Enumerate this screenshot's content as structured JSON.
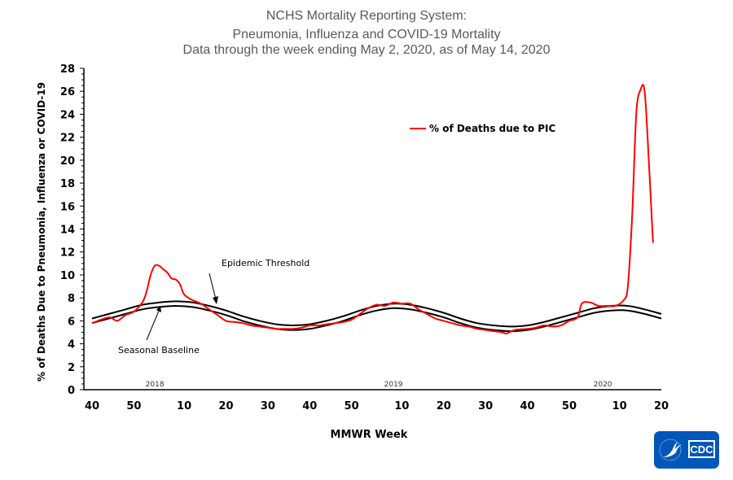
{
  "chart_data": {
    "type": "line",
    "title": [
      "NCHS Mortality Reporting System:",
      "Pneumonia, Influenza and COVID-19 Mortality",
      "Data through the week ending May 2, 2020, as of May 14, 2020"
    ],
    "xlabel": "MMWR Week",
    "ylabel": "% of Deaths Due to Pneumonia, Influenza or  COVID-19",
    "ylim": [
      0,
      28
    ],
    "yticks": [
      0,
      2,
      4,
      6,
      8,
      10,
      12,
      14,
      16,
      18,
      20,
      22,
      24,
      26,
      28
    ],
    "xticks": [
      {
        "label": "40",
        "week": "2017-40"
      },
      {
        "label": "50",
        "week": "2017-50"
      },
      {
        "label": "10",
        "week": "2018-10"
      },
      {
        "label": "20",
        "week": "2018-20"
      },
      {
        "label": "30",
        "week": "2018-30"
      },
      {
        "label": "40",
        "week": "2018-40"
      },
      {
        "label": "50",
        "week": "2018-50"
      },
      {
        "label": "10",
        "week": "2019-10"
      },
      {
        "label": "20",
        "week": "2019-20"
      },
      {
        "label": "30",
        "week": "2019-30"
      },
      {
        "label": "40",
        "week": "2019-40"
      },
      {
        "label": "50",
        "week": "2019-50"
      },
      {
        "label": "10",
        "week": "2020-10"
      },
      {
        "label": "20",
        "week": "2020-20"
      }
    ],
    "year_labels": [
      {
        "label": "2018",
        "week": "2018-3"
      },
      {
        "label": "2019",
        "week": "2019-8"
      },
      {
        "label": "2020",
        "week": "2020-6"
      }
    ],
    "legend": {
      "position": "top-right",
      "entries": [
        "% of Deaths due to PIC"
      ]
    },
    "annotations": {
      "threshold": "Epidemic Threshold",
      "baseline": "Seasonal Baseline"
    },
    "series": [
      {
        "name": "% of Deaths due to PIC",
        "color": "#ff0000",
        "points": [
          [
            "2017-40",
            5.8
          ],
          [
            "2017-44",
            6.3
          ],
          [
            "2017-46",
            6.0
          ],
          [
            "2017-48",
            6.5
          ],
          [
            "2017-50",
            6.8
          ],
          [
            "2017-52",
            7.6
          ],
          [
            "2018-1",
            8.5
          ],
          [
            "2018-2",
            10.0
          ],
          [
            "2018-3",
            10.8
          ],
          [
            "2018-4",
            10.8
          ],
          [
            "2018-5",
            10.5
          ],
          [
            "2018-6",
            10.2
          ],
          [
            "2018-7",
            9.7
          ],
          [
            "2018-8",
            9.6
          ],
          [
            "2018-9",
            9.2
          ],
          [
            "2018-10",
            8.3
          ],
          [
            "2018-12",
            7.8
          ],
          [
            "2018-14",
            7.5
          ],
          [
            "2018-16",
            7.0
          ],
          [
            "2018-18",
            6.5
          ],
          [
            "2018-20",
            6.0
          ],
          [
            "2018-22",
            5.9
          ],
          [
            "2018-24",
            5.8
          ],
          [
            "2018-26",
            5.6
          ],
          [
            "2018-28",
            5.5
          ],
          [
            "2018-30",
            5.4
          ],
          [
            "2018-32",
            5.3
          ],
          [
            "2018-34",
            5.3
          ],
          [
            "2018-36",
            5.3
          ],
          [
            "2018-38",
            5.4
          ],
          [
            "2018-40",
            5.6
          ],
          [
            "2018-42",
            5.6
          ],
          [
            "2018-44",
            5.7
          ],
          [
            "2018-46",
            5.8
          ],
          [
            "2018-48",
            5.9
          ],
          [
            "2018-50",
            6.1
          ],
          [
            "2018-52",
            6.6
          ],
          [
            "2019-2",
            7.1
          ],
          [
            "2019-4",
            7.4
          ],
          [
            "2019-6",
            7.3
          ],
          [
            "2019-8",
            7.6
          ],
          [
            "2019-10",
            7.5
          ],
          [
            "2019-12",
            7.5
          ],
          [
            "2019-14",
            7.0
          ],
          [
            "2019-16",
            6.6
          ],
          [
            "2019-18",
            6.2
          ],
          [
            "2019-20",
            6.0
          ],
          [
            "2019-22",
            5.8
          ],
          [
            "2019-24",
            5.6
          ],
          [
            "2019-26",
            5.5
          ],
          [
            "2019-28",
            5.3
          ],
          [
            "2019-30",
            5.2
          ],
          [
            "2019-32",
            5.1
          ],
          [
            "2019-34",
            5.0
          ],
          [
            "2019-35",
            4.9
          ],
          [
            "2019-37",
            5.2
          ],
          [
            "2019-40",
            5.3
          ],
          [
            "2019-42",
            5.4
          ],
          [
            "2019-44",
            5.6
          ],
          [
            "2019-46",
            5.5
          ],
          [
            "2019-48",
            5.6
          ],
          [
            "2019-50",
            6.0
          ],
          [
            "2019-52",
            6.3
          ],
          [
            "2020-1",
            7.5
          ],
          [
            "2020-3",
            7.6
          ],
          [
            "2020-5",
            7.3
          ],
          [
            "2020-7",
            7.3
          ],
          [
            "2020-9",
            7.3
          ],
          [
            "2020-11",
            7.8
          ],
          [
            "2020-12",
            9.0
          ],
          [
            "2020-13",
            15.0
          ],
          [
            "2020-14",
            24.0
          ],
          [
            "2020-15",
            26.1
          ],
          [
            "2020-16",
            26.0
          ],
          [
            "2020-17",
            20.0
          ],
          [
            "2020-18",
            12.8
          ]
        ]
      },
      {
        "name": "Epidemic Threshold",
        "color": "#000000",
        "weeks": [
          "2017-40",
          "2017-44",
          "2017-48",
          "2017-52",
          "2018-4",
          "2018-8",
          "2018-12",
          "2018-16",
          "2018-20",
          "2018-24",
          "2018-28",
          "2018-32",
          "2018-36",
          "2018-40",
          "2018-44",
          "2018-48",
          "2018-52",
          "2019-4",
          "2019-8",
          "2019-12",
          "2019-16",
          "2019-20",
          "2019-24",
          "2019-28",
          "2019-32",
          "2019-36",
          "2019-40",
          "2019-44",
          "2019-48",
          "2019-52",
          "2020-4",
          "2020-8",
          "2020-12",
          "2020-16",
          "2020-20"
        ],
        "values": [
          6.2,
          6.6,
          7.0,
          7.4,
          7.6,
          7.7,
          7.6,
          7.3,
          6.9,
          6.4,
          6.0,
          5.7,
          5.6,
          5.7,
          6.0,
          6.4,
          6.9,
          7.3,
          7.5,
          7.4,
          7.1,
          6.7,
          6.2,
          5.8,
          5.6,
          5.5,
          5.6,
          5.9,
          6.3,
          6.7,
          7.1,
          7.3,
          7.3,
          7.0,
          6.6
        ]
      },
      {
        "name": "Seasonal Baseline",
        "color": "#000000",
        "weeks": [
          "2017-40",
          "2017-44",
          "2017-48",
          "2017-52",
          "2018-4",
          "2018-8",
          "2018-12",
          "2018-16",
          "2018-20",
          "2018-24",
          "2018-28",
          "2018-32",
          "2018-36",
          "2018-40",
          "2018-44",
          "2018-48",
          "2018-52",
          "2019-4",
          "2019-8",
          "2019-12",
          "2019-16",
          "2019-20",
          "2019-24",
          "2019-28",
          "2019-32",
          "2019-36",
          "2019-40",
          "2019-44",
          "2019-48",
          "2019-52",
          "2020-4",
          "2020-8",
          "2020-12",
          "2020-16",
          "2020-20"
        ],
        "values": [
          5.8,
          6.2,
          6.6,
          7.0,
          7.2,
          7.3,
          7.2,
          6.9,
          6.5,
          6.0,
          5.6,
          5.3,
          5.2,
          5.3,
          5.6,
          6.0,
          6.5,
          6.9,
          7.1,
          7.0,
          6.7,
          6.3,
          5.8,
          5.4,
          5.2,
          5.1,
          5.2,
          5.5,
          5.9,
          6.3,
          6.7,
          6.9,
          6.9,
          6.6,
          6.2
        ]
      }
    ]
  },
  "logo": {
    "text": "CDC",
    "color": "#0057b8"
  }
}
